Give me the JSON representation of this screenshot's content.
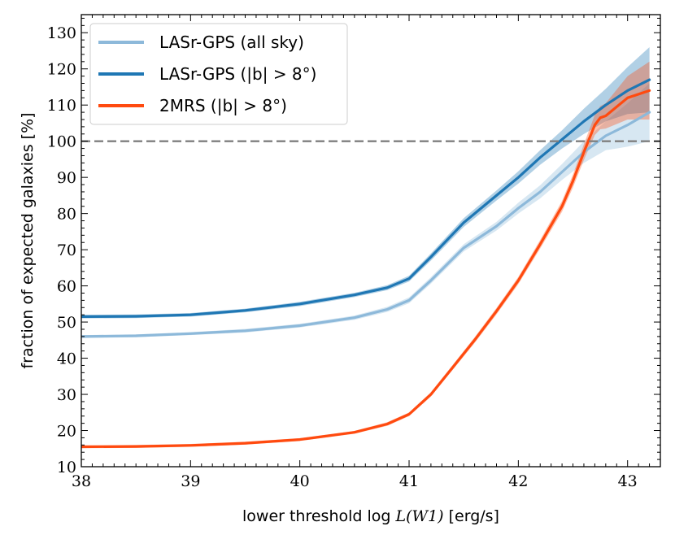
{
  "chart_data": {
    "type": "line",
    "xlabel_prefix": "lower threshold log ",
    "xlabel_math": "L(W1)",
    "xlabel_suffix": " [erg/s]",
    "ylabel": "fraction of expected galaxies [%]",
    "xlim": [
      38,
      43.3
    ],
    "ylim": [
      10,
      135
    ],
    "xticks": [
      "38",
      "39",
      "40",
      "41",
      "42",
      "43"
    ],
    "yticks": [
      "10",
      "20",
      "30",
      "40",
      "50",
      "60",
      "70",
      "80",
      "90",
      "100",
      "110",
      "120",
      "130"
    ],
    "reference_line": {
      "y": 100,
      "style": "dashed",
      "color": "#7f7f7f"
    },
    "legend_position": "top-left",
    "series": [
      {
        "name": "LASr-GPS (all sky)",
        "color": "#8db9da",
        "x": [
          38.0,
          38.5,
          39.0,
          39.5,
          40.0,
          40.5,
          40.8,
          41.0,
          41.2,
          41.5,
          41.8,
          42.0,
          42.2,
          42.4,
          42.6,
          42.8,
          43.0,
          43.2
        ],
        "y": [
          46.0,
          46.2,
          46.8,
          47.6,
          49.0,
          51.2,
          53.5,
          56.0,
          61.5,
          70.5,
          76.5,
          81.5,
          86.0,
          91.5,
          97.0,
          101.5,
          104.5,
          108.0
        ],
        "band": [
          0.4,
          0.4,
          0.4,
          0.5,
          0.5,
          0.6,
          0.7,
          0.8,
          0.9,
          1.0,
          1.2,
          1.5,
          1.8,
          2.2,
          3.0,
          4.0,
          6.0,
          8.0
        ]
      },
      {
        "name": "LASr-GPS (|b| > 8°)",
        "color": "#1f77b4",
        "x": [
          38.0,
          38.5,
          39.0,
          39.5,
          40.0,
          40.5,
          40.8,
          41.0,
          41.2,
          41.5,
          41.8,
          42.0,
          42.2,
          42.4,
          42.6,
          42.8,
          43.0,
          43.2
        ],
        "y": [
          51.5,
          51.6,
          52.0,
          53.2,
          55.0,
          57.5,
          59.5,
          62.0,
          68.0,
          77.5,
          85.0,
          90.0,
          95.5,
          100.5,
          105.5,
          110.0,
          114.0,
          117.0
        ],
        "band": [
          0.5,
          0.5,
          0.5,
          0.5,
          0.6,
          0.6,
          0.7,
          0.8,
          1.0,
          1.2,
          1.4,
          1.7,
          2.0,
          2.5,
          3.5,
          4.5,
          6.5,
          9.0
        ]
      },
      {
        "name": "2MRS (|b| > 8°)",
        "color": "#ff4a0f",
        "x": [
          38.0,
          38.5,
          39.0,
          39.5,
          40.0,
          40.5,
          40.8,
          41.0,
          41.2,
          41.4,
          41.6,
          41.8,
          42.0,
          42.2,
          42.4,
          42.5,
          42.6,
          42.7,
          42.75,
          42.8,
          43.0,
          43.2
        ],
        "y": [
          15.5,
          15.6,
          15.9,
          16.5,
          17.5,
          19.5,
          21.8,
          24.5,
          30.0,
          37.5,
          45.0,
          53.0,
          61.5,
          71.5,
          82.0,
          89.0,
          97.0,
          104.5,
          106.5,
          107.0,
          112.0,
          114.0
        ],
        "band": [
          0.4,
          0.4,
          0.4,
          0.4,
          0.4,
          0.4,
          0.5,
          0.5,
          0.6,
          0.7,
          0.8,
          0.9,
          1.0,
          1.2,
          1.5,
          1.8,
          2.2,
          2.8,
          3.2,
          3.5,
          6.0,
          8.0
        ]
      }
    ]
  }
}
